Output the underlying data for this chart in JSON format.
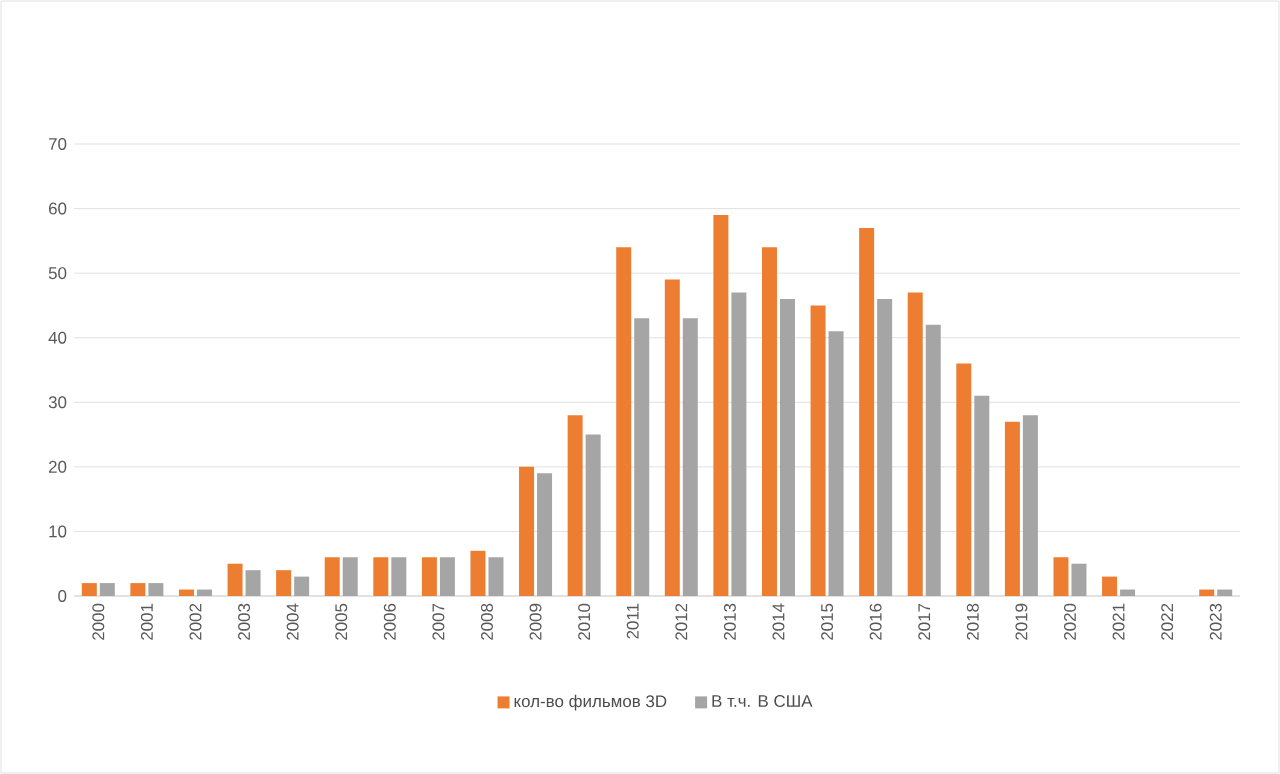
{
  "chart_data": {
    "type": "bar",
    "categories": [
      "2000",
      "2001",
      "2002",
      "2003",
      "2004",
      "2005",
      "2006",
      "2007",
      "2008",
      "2009",
      "2010",
      "2011",
      "2012",
      "2013",
      "2014",
      "2015",
      "2016",
      "2017",
      "2018",
      "2019",
      "2020",
      "2021",
      "2022",
      "2023"
    ],
    "series": [
      {
        "name": "кол-во фильмов 3D",
        "color": "#ed7d31",
        "values": [
          2,
          2,
          1,
          5,
          4,
          6,
          6,
          6,
          7,
          20,
          28,
          54,
          49,
          59,
          54,
          45,
          57,
          47,
          36,
          27,
          6,
          3,
          0,
          1
        ]
      },
      {
        "name": "В т.ч. В США",
        "color": "#a5a5a5",
        "values": [
          2,
          2,
          1,
          4,
          3,
          6,
          6,
          6,
          6,
          19,
          25,
          43,
          43,
          47,
          46,
          41,
          46,
          42,
          31,
          28,
          5,
          1,
          0,
          1
        ]
      }
    ],
    "ylim": [
      0,
      70
    ],
    "yticks": [
      0,
      10,
      20,
      30,
      40,
      50,
      60,
      70
    ],
    "grid": "y",
    "legend": "bottom"
  }
}
